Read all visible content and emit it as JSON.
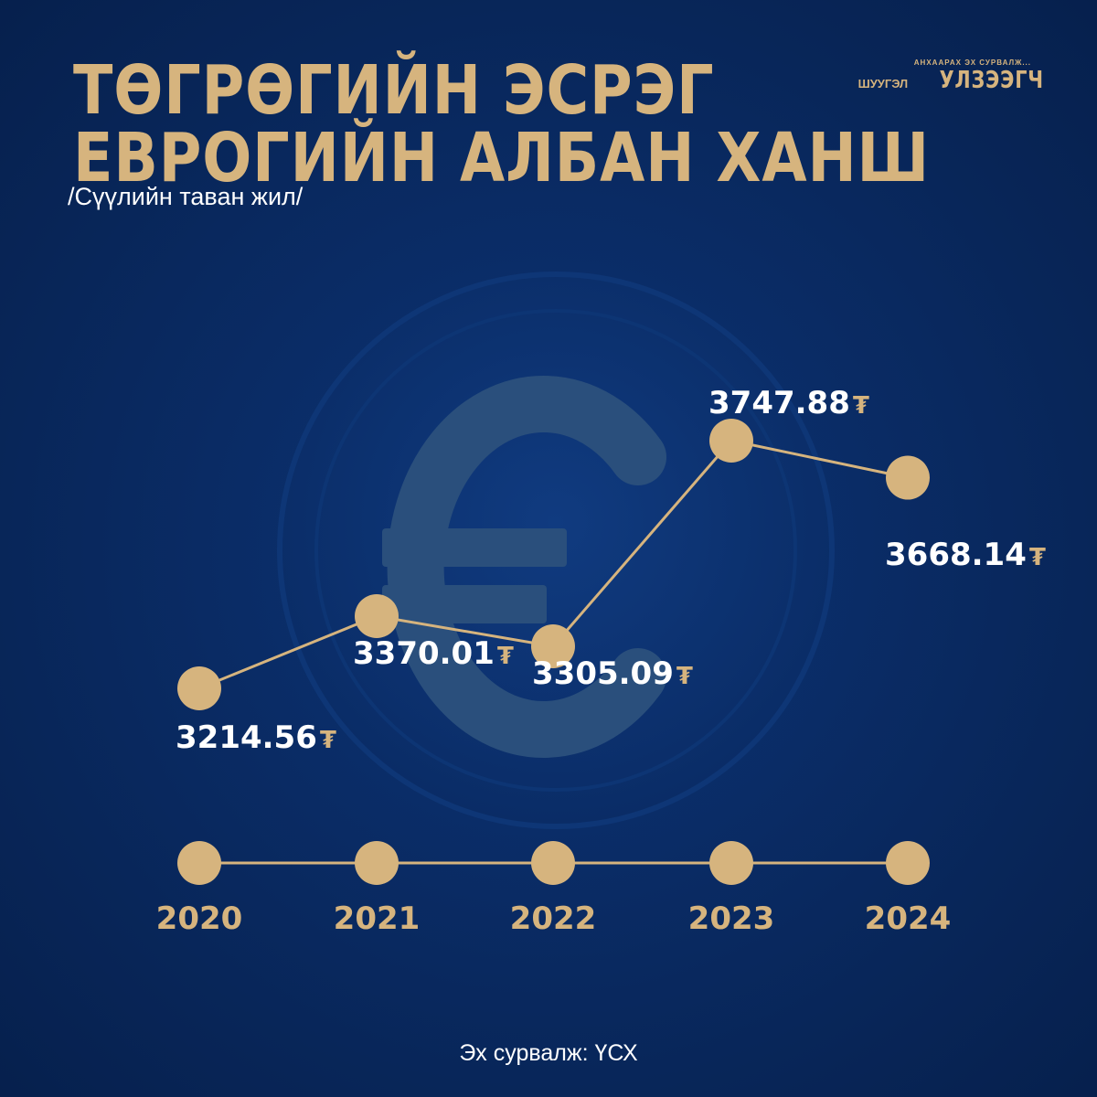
{
  "header": {
    "title_line1": "ТӨГРӨГИЙН ЭСРЭГ",
    "title_line2": "ЕВРОГИЙН АЛБАН ХАНШ",
    "subtitle": "/Сүүлийн таван жил/"
  },
  "logo": {
    "tagline": "АНХААРАХ ЭХ СУРВАЛЖ...",
    "prefix": "ШУУГЭЛ",
    "name": "УЛЗЭЭГЧ"
  },
  "background": {
    "icon": "euro-coin-icon"
  },
  "chart_data": {
    "type": "line",
    "title": "ТӨГРӨГИЙН ЭСРЭГ ЕВРОГИЙН АЛБАН ХАНШ",
    "x": [
      "2020",
      "2021",
      "2022",
      "2023",
      "2024"
    ],
    "series": [
      {
        "values": [
          3214.56,
          3370.01,
          3305.09,
          3747.88,
          3668.14
        ]
      }
    ],
    "labels": [
      "3214.56",
      "3370.01",
      "3305.09",
      "3747.88",
      "3668.14"
    ],
    "currency_symbol": "₮",
    "ylim": [
      3100,
      3850
    ],
    "grid": false,
    "legend": "none",
    "colors": {
      "accent": "#d6b47e",
      "label": "#ffffff",
      "background": "#0a2c66"
    }
  },
  "footer": {
    "source": "Эх сурвалж: ҮСХ"
  }
}
